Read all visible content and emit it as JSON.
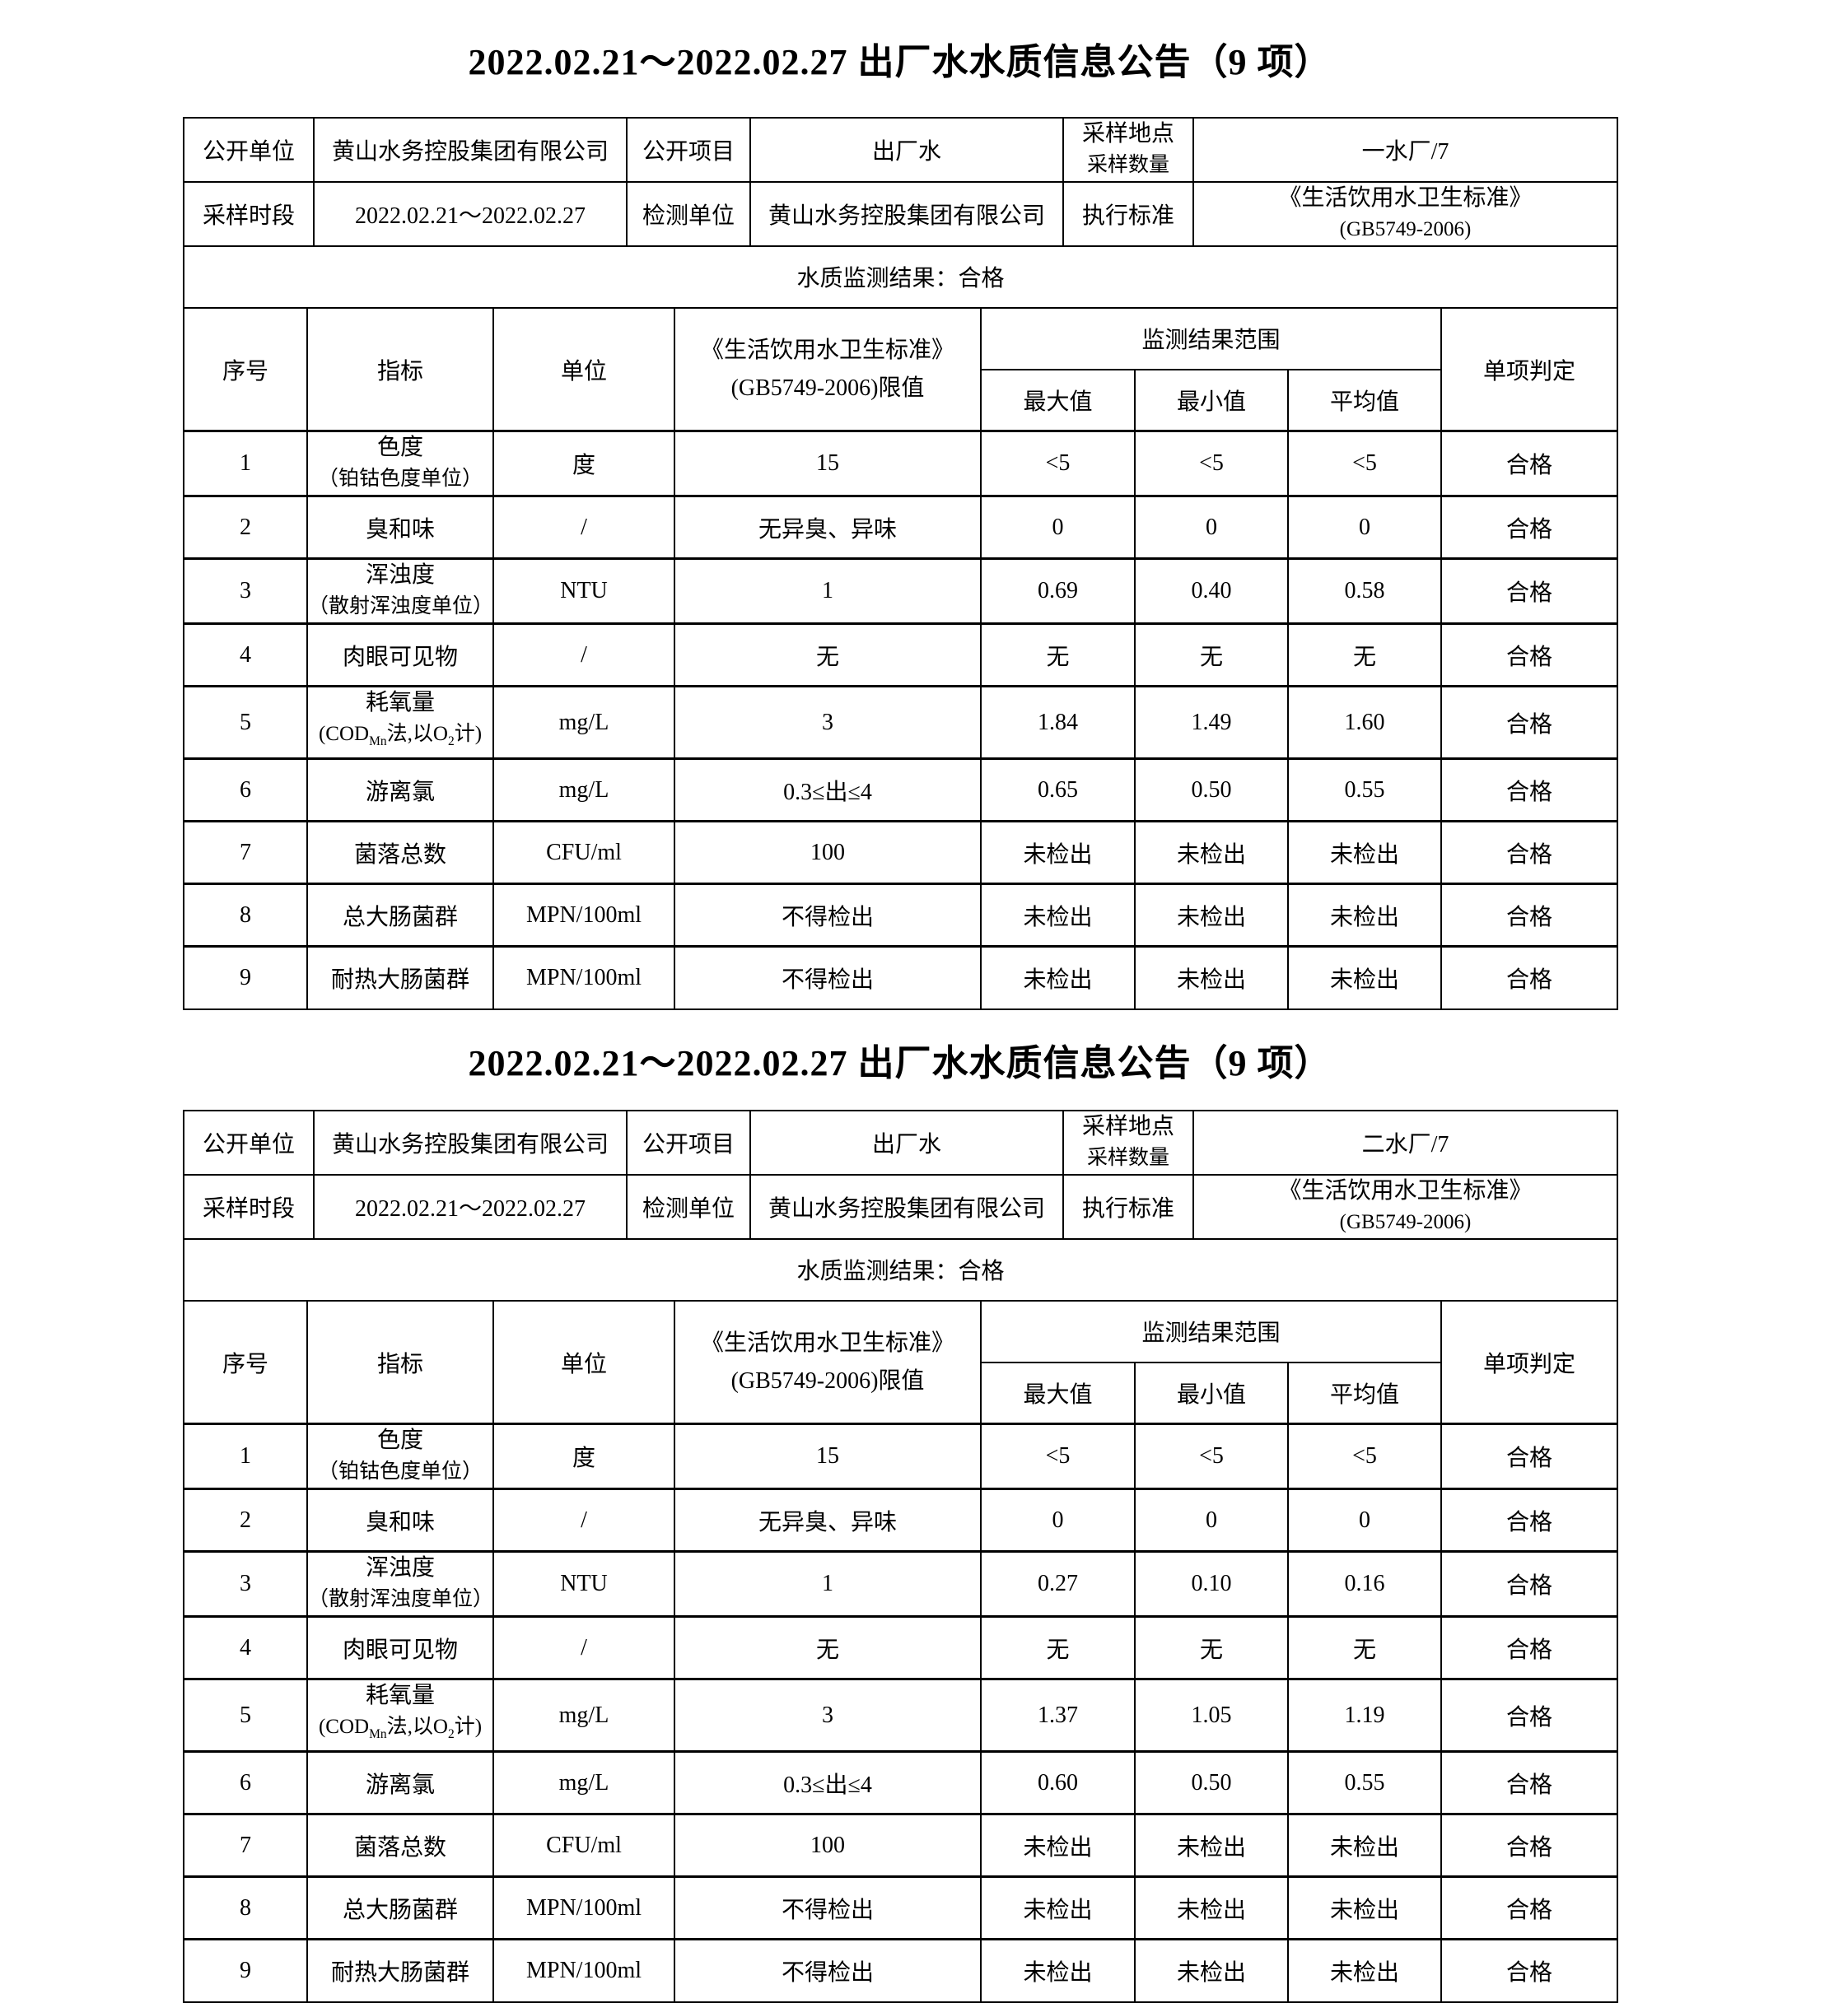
{
  "columns": {
    "no": "序号",
    "indicator": "指标",
    "unit": "单位",
    "limit_line1": "《生活饮用水卫生标准》",
    "limit_line2": "(GB5749-2006)限值",
    "range": "监测结果范围",
    "max": "最大值",
    "min": "最小值",
    "avg": "平均值",
    "judge": "单项判定"
  },
  "tables": [
    {
      "title": "2022.02.21～2022.02.27 出厂水水质信息公告（9 项）",
      "info": {
        "open_unit_label": "公开单位",
        "open_unit_value": "黄山水务控股集团有限公司",
        "open_item_label": "公开项目",
        "open_item_value": "出厂水",
        "sample_label_line1": "采样地点",
        "sample_label_line2": "采样数量",
        "sample_value": "一水厂/7",
        "period_label": "采样时段",
        "period_value": "2022.02.21～2022.02.27",
        "test_unit_label": "检测单位",
        "test_unit_value": "黄山水务控股集团有限公司",
        "standard_label": "执行标准",
        "standard_value_line1": "《生活饮用水卫生标准》",
        "standard_value_line2": "(GB5749-2006)",
        "result_text": "水质监测结果：合格"
      },
      "rows": [
        {
          "no": "1",
          "indicator": [
            "色度",
            "（铂钴色度单位）"
          ],
          "unit": "度",
          "limit": "15",
          "max": "<5",
          "min": "<5",
          "avg": "<5",
          "judge": "合格"
        },
        {
          "no": "2",
          "indicator": [
            "臭和味"
          ],
          "unit": "/",
          "limit": "无异臭、异味",
          "max": "0",
          "min": "0",
          "avg": "0",
          "judge": "合格"
        },
        {
          "no": "3",
          "indicator": [
            "浑浊度",
            "（散射浑浊度单位）"
          ],
          "unit": "NTU",
          "limit": "1",
          "max": "0.69",
          "min": "0.40",
          "avg": "0.58",
          "judge": "合格"
        },
        {
          "no": "4",
          "indicator": [
            "肉眼可见物"
          ],
          "unit": "/",
          "limit": "无",
          "max": "无",
          "min": "无",
          "avg": "无",
          "judge": "合格"
        },
        {
          "no": "5",
          "indicator": [
            "耗氧量",
            [
              {
                "t": "(COD"
              },
              {
                "t": "Mn",
                "sub": true
              },
              {
                "t": "法,以O"
              },
              {
                "t": "2",
                "sub": true
              },
              {
                "t": "计)"
              }
            ]
          ],
          "unit": "mg/L",
          "limit": "3",
          "max": "1.84",
          "min": "1.49",
          "avg": "1.60",
          "judge": "合格"
        },
        {
          "no": "6",
          "indicator": [
            "游离氯"
          ],
          "unit": "mg/L",
          "limit": "0.3≤出≤4",
          "max": "0.65",
          "min": "0.50",
          "avg": "0.55",
          "judge": "合格"
        },
        {
          "no": "7",
          "indicator": [
            "菌落总数"
          ],
          "unit": "CFU/ml",
          "limit": "100",
          "max": "未检出",
          "min": "未检出",
          "avg": "未检出",
          "judge": "合格"
        },
        {
          "no": "8",
          "indicator": [
            "总大肠菌群"
          ],
          "unit": "MPN/100ml",
          "limit": "不得检出",
          "max": "未检出",
          "min": "未检出",
          "avg": "未检出",
          "judge": "合格"
        },
        {
          "no": "9",
          "indicator": [
            "耐热大肠菌群"
          ],
          "unit": "MPN/100ml",
          "limit": "不得检出",
          "max": "未检出",
          "min": "未检出",
          "avg": "未检出",
          "judge": "合格"
        }
      ]
    },
    {
      "title": "2022.02.21～2022.02.27 出厂水水质信息公告（9 项）",
      "info": {
        "open_unit_label": "公开单位",
        "open_unit_value": "黄山水务控股集团有限公司",
        "open_item_label": "公开项目",
        "open_item_value": "出厂水",
        "sample_label_line1": "采样地点",
        "sample_label_line2": "采样数量",
        "sample_value": "二水厂/7",
        "period_label": "采样时段",
        "period_value": "2022.02.21～2022.02.27",
        "test_unit_label": "检测单位",
        "test_unit_value": "黄山水务控股集团有限公司",
        "standard_label": "执行标准",
        "standard_value_line1": "《生活饮用水卫生标准》",
        "standard_value_line2": "(GB5749-2006)",
        "result_text": "水质监测结果：合格"
      },
      "rows": [
        {
          "no": "1",
          "indicator": [
            "色度",
            "（铂钴色度单位）"
          ],
          "unit": "度",
          "limit": "15",
          "max": "<5",
          "min": "<5",
          "avg": "<5",
          "judge": "合格"
        },
        {
          "no": "2",
          "indicator": [
            "臭和味"
          ],
          "unit": "/",
          "limit": "无异臭、异味",
          "max": "0",
          "min": "0",
          "avg": "0",
          "judge": "合格"
        },
        {
          "no": "3",
          "indicator": [
            "浑浊度",
            "（散射浑浊度单位）"
          ],
          "unit": "NTU",
          "limit": "1",
          "max": "0.27",
          "min": "0.10",
          "avg": "0.16",
          "judge": "合格"
        },
        {
          "no": "4",
          "indicator": [
            "肉眼可见物"
          ],
          "unit": "/",
          "limit": "无",
          "max": "无",
          "min": "无",
          "avg": "无",
          "judge": "合格"
        },
        {
          "no": "5",
          "indicator": [
            "耗氧量",
            [
              {
                "t": "(COD"
              },
              {
                "t": "Mn",
                "sub": true
              },
              {
                "t": "法,以O"
              },
              {
                "t": "2",
                "sub": true
              },
              {
                "t": "计)"
              }
            ]
          ],
          "unit": "mg/L",
          "limit": "3",
          "max": "1.37",
          "min": "1.05",
          "avg": "1.19",
          "judge": "合格"
        },
        {
          "no": "6",
          "indicator": [
            "游离氯"
          ],
          "unit": "mg/L",
          "limit": "0.3≤出≤4",
          "max": "0.60",
          "min": "0.50",
          "avg": "0.55",
          "judge": "合格"
        },
        {
          "no": "7",
          "indicator": [
            "菌落总数"
          ],
          "unit": "CFU/ml",
          "limit": "100",
          "max": "未检出",
          "min": "未检出",
          "avg": "未检出",
          "judge": "合格"
        },
        {
          "no": "8",
          "indicator": [
            "总大肠菌群"
          ],
          "unit": "MPN/100ml",
          "limit": "不得检出",
          "max": "未检出",
          "min": "未检出",
          "avg": "未检出",
          "judge": "合格"
        },
        {
          "no": "9",
          "indicator": [
            "耐热大肠菌群"
          ],
          "unit": "MPN/100ml",
          "limit": "不得检出",
          "max": "未检出",
          "min": "未检出",
          "avg": "未检出",
          "judge": "合格"
        }
      ]
    }
  ]
}
